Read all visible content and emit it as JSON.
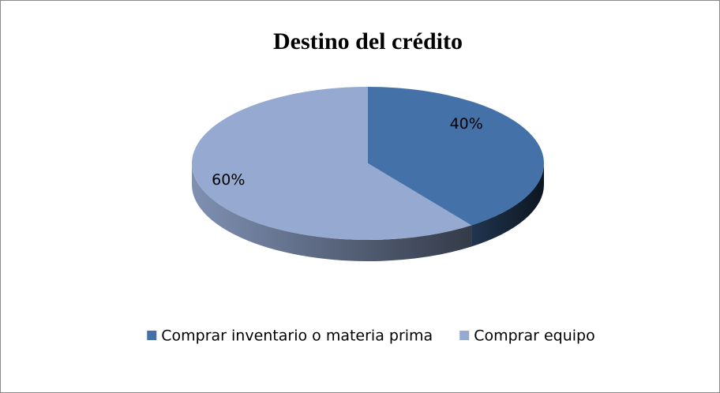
{
  "chart_data": {
    "type": "pie",
    "title": "Destino del crédito",
    "categories": [
      "Comprar inventario o materia prima",
      "Comprar equipo"
    ],
    "values": [
      40,
      60
    ],
    "value_labels": [
      "40%",
      "60%"
    ],
    "colors": [
      "#4472a8",
      "#95a9d1"
    ],
    "legend": "bottom"
  }
}
